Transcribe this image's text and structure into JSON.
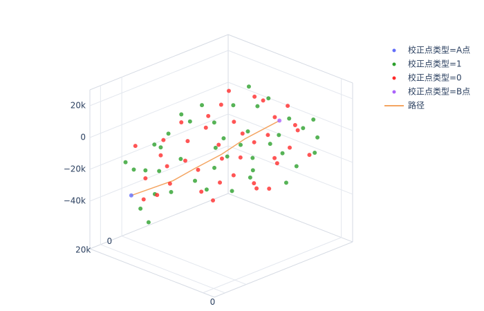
{
  "chart_data": {
    "type": "scatter3d",
    "xlim": [
      -100000,
      10000
    ],
    "ylim": [
      -100000,
      30000
    ],
    "zlim": [
      -70000,
      30000
    ],
    "xticks": [
      0
    ],
    "yticks": [
      0,
      {
        "value": 20000,
        "label": "20k"
      }
    ],
    "zticks": [
      {
        "value": -40000,
        "label": "−40k"
      },
      {
        "value": -20000,
        "label": "−20k"
      },
      0,
      {
        "value": 20000,
        "label": "20k"
      }
    ],
    "grid": true,
    "legend": "right",
    "series": [
      {
        "name": "校正点类型=A点",
        "color": "#636efa",
        "mode": "markers",
        "x": [
          -70000
        ],
        "y": [
          23000
        ],
        "z": [
          -30000
        ]
      },
      {
        "name": "校正点类型=1",
        "color": "#2ca02c",
        "mode": "markers",
        "x": [
          -95000,
          -85000,
          -75000,
          -65000,
          -55000,
          -45000,
          -35000,
          -25000,
          -15000,
          -5000,
          -90000,
          -80000,
          -70000,
          -60000,
          -50000,
          -40000,
          -30000,
          -20000,
          -10000,
          0,
          -92000,
          -82000,
          -72000,
          -62000,
          -52000,
          -42000,
          -32000,
          -22000,
          -12000,
          -2000,
          -87000,
          -77000,
          -67000,
          -57000,
          -47000,
          -37000,
          -27000,
          -17000,
          -7000,
          3000,
          -60000,
          -50000
        ],
        "y": [
          -70000,
          -40000,
          -10000,
          15000,
          -90000,
          -60000,
          -30000,
          0,
          -80000,
          -50000,
          -20000,
          10000,
          -55000,
          -85000,
          -35000,
          -5000,
          -65000,
          -95000,
          -25000,
          -75000,
          5000,
          -45000,
          -75000,
          -15000,
          20000,
          -50000,
          -85000,
          -40000,
          -10000,
          -60000,
          -30000,
          -95000,
          0,
          -50000,
          10000,
          -20000,
          -70000,
          -35000,
          -85000,
          -45000,
          25000,
          28000
        ],
        "z": [
          -5000,
          0,
          -10000,
          -15000,
          5000,
          -5000,
          -10000,
          -20000,
          0,
          -5000,
          -15000,
          -20000,
          -5000,
          0,
          -10000,
          -20000,
          -10000,
          0,
          -15000,
          -10000,
          -20000,
          -5000,
          0,
          -15000,
          -25000,
          -10000,
          0,
          -10000,
          -20000,
          -15000,
          -10000,
          5000,
          -20000,
          -10000,
          -25000,
          -15000,
          -5000,
          -15000,
          -5000,
          -20000,
          -35000,
          -40000
        ]
      },
      {
        "name": "校正点类型=0",
        "color": "#ff2a2a",
        "mode": "markers",
        "x": [
          -90000,
          -80000,
          -70000,
          -60000,
          -50000,
          -40000,
          -30000,
          -20000,
          -10000,
          0,
          -85000,
          -75000,
          -65000,
          -55000,
          -45000,
          -35000,
          -25000,
          -15000,
          -5000,
          5000,
          -88000,
          -78000,
          -68000,
          -58000,
          -48000,
          -38000,
          -28000,
          -18000,
          -8000,
          2000,
          -82000,
          -72000,
          -62000,
          -52000,
          -42000,
          -32000,
          -22000,
          -12000,
          -2000,
          -60000
        ],
        "y": [
          -90000,
          -60000,
          -30000,
          0,
          20000,
          -80000,
          -50000,
          -20000,
          10000,
          -70000,
          -40000,
          -10000,
          15000,
          -85000,
          -55000,
          -25000,
          5000,
          -75000,
          -45000,
          -15000,
          0,
          -70000,
          -45000,
          -15000,
          10000,
          -90000,
          -35000,
          -5000,
          -60000,
          -30000,
          -20000,
          -95000,
          -65000,
          -40000,
          -10000,
          -65000,
          -80000,
          -50000,
          -20000,
          22000
        ],
        "z": [
          0,
          -5000,
          -10000,
          -15000,
          -25000,
          0,
          -5000,
          -15000,
          -20000,
          -10000,
          -5000,
          -15000,
          -20000,
          5000,
          -5000,
          -10000,
          -20000,
          0,
          -10000,
          -15000,
          -10000,
          0,
          -5000,
          -15000,
          -20000,
          5000,
          -10000,
          -15000,
          -5000,
          -20000,
          -10000,
          0,
          -5000,
          -10000,
          -15000,
          -5000,
          0,
          -10000,
          -15000,
          -30000
        ]
      },
      {
        "name": "校正点类型=B点",
        "color": "#ab63fa",
        "mode": "markers",
        "x": [
          -34000
        ],
        "y": [
          -78000
        ],
        "z": [
          0
        ]
      },
      {
        "name": "路径",
        "color": "#f4a460",
        "mode": "lines",
        "x": [
          -70000,
          -60000,
          -50000,
          -45000,
          -40000,
          -38000,
          -34000
        ],
        "y": [
          23000,
          15000,
          5000,
          -10000,
          -30000,
          -50000,
          -78000
        ],
        "z": [
          -30000,
          -25000,
          -20000,
          -15000,
          -10000,
          -5000,
          0
        ]
      }
    ]
  }
}
